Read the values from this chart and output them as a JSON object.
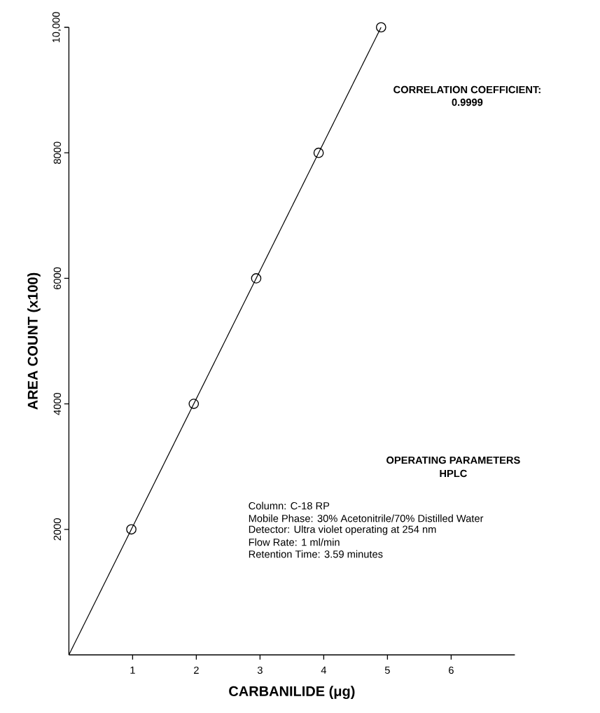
{
  "chart_data": {
    "type": "scatter",
    "xlabel": "CARBANILIDE (μg)",
    "ylabel": "AREA COUNT (x100)",
    "xlim": [
      0,
      7
    ],
    "ylim": [
      0,
      10000
    ],
    "xticks": [
      1,
      2,
      3,
      4,
      5,
      6
    ],
    "yticks": [
      2000,
      4000,
      6000,
      8000,
      {
        "value": 10000,
        "label": "10,000"
      }
    ],
    "series": [
      {
        "marker": "circle",
        "color": "#000000",
        "x": [
          0.98,
          1.96,
          2.94,
          3.92,
          4.9
        ],
        "values": [
          2000,
          4000,
          6000,
          8000,
          10000
        ]
      },
      {
        "type": "line",
        "marker": "none",
        "color": "#000000",
        "x": [
          0,
          4.9
        ],
        "values": [
          0,
          10000
        ]
      }
    ],
    "annotations": [
      "CORRELATION COEFFICIENT:",
      "0.9999",
      "OPERATING PARAMETERS",
      "HPLC",
      "Column: C-18 RP",
      "Mobile Phase: 30% Acetonitrile/70% Distilled Water",
      "Detector: Ultra violet operating at 254 nm",
      "Flow Rate: 1 ml/min",
      "Retention Time: 3.59 minutes"
    ]
  }
}
